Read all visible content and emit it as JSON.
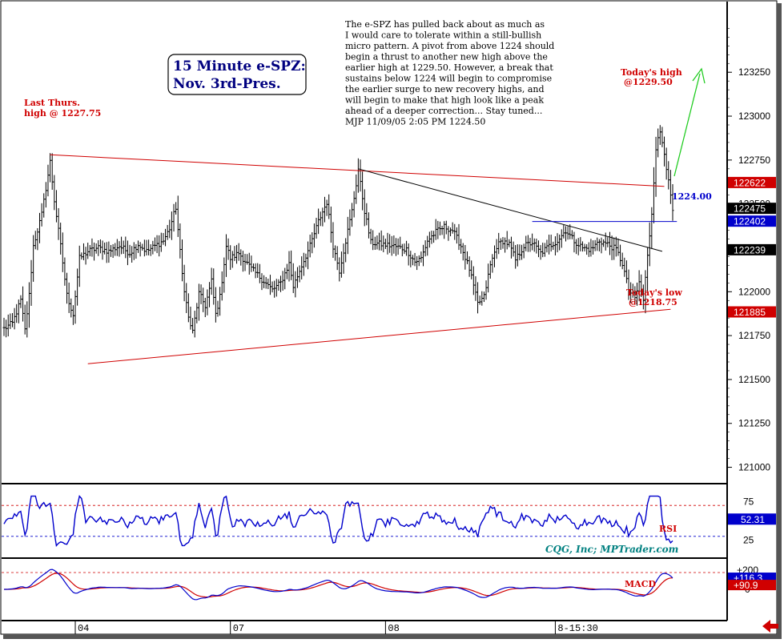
{
  "chart_data": {
    "type": "bar",
    "subtype": "ohlc-price-chart-with-indicators",
    "title": "15 Minute e-SPZ:",
    "subtitle": "Nov. 3rd-Pres.",
    "commentary": [
      "The e-SPZ has pulled back about as much as",
      "I would care to tolerate within a still-bullish",
      "micro pattern. A pivot from above 1224 should",
      "begin a thrust to another new high above the",
      "earlier high at 1229.50. However, a break that",
      "sustains below 1224 will begin to compromise",
      "the earlier surge to new recovery highs, and",
      "will begin to make that high look like a peak",
      "ahead of a deeper correction... Stay tuned...",
      "MJP 11/09/05 2:05 PM  1224.50"
    ],
    "annotations": {
      "last_thurs_high": [
        "Last Thurs.",
        "high @ 1227.75"
      ],
      "todays_high": [
        "Today's high",
        "@1229.50"
      ],
      "todays_low": [
        "Today's low",
        "@1218.75"
      ],
      "level_label": "1224.00"
    },
    "credit": "CQG, Inc; MPTrader.com",
    "ylim": [
      1209.25,
      1236.25
    ],
    "y_ticks": [
      1232.5,
      1230.0,
      1227.5,
      1225.0,
      1222.5,
      1220.0,
      1217.5,
      1215.0,
      1212.5,
      1210.0
    ],
    "y_tick_labels": [
      "123250",
      "123000",
      "122750",
      "122500",
      "122250",
      "122000",
      "121750",
      "121500",
      "121250",
      "121000"
    ],
    "price_tags": [
      {
        "label": "122622",
        "value": 1226.22,
        "color": "#d00000"
      },
      {
        "label": "122475",
        "value": 1224.75,
        "color": "#000000"
      },
      {
        "label": "122402",
        "value": 1224.02,
        "color": "#0000cc"
      },
      {
        "label": "122239",
        "value": 1222.39,
        "color": "#000000"
      },
      {
        "label": "121885",
        "value": 1218.85,
        "color": "#d00000"
      }
    ],
    "x_labels": [
      "04",
      "07",
      "08",
      "8-15:30"
    ],
    "x_label_bar_index": [
      34,
      108,
      182,
      263
    ],
    "bar_count": 320,
    "anchors": [
      [
        0,
        1217.9
      ],
      [
        4,
        1218.2
      ],
      [
        8,
        1219.5
      ],
      [
        10,
        1217.8
      ],
      [
        12,
        1219.8
      ],
      [
        14,
        1222.6
      ],
      [
        18,
        1224.4
      ],
      [
        22,
        1227.4
      ],
      [
        24,
        1225.2
      ],
      [
        27,
        1222.6
      ],
      [
        30,
        1219.8
      ],
      [
        33,
        1218.7
      ],
      [
        36,
        1221.9
      ],
      [
        40,
        1222.3
      ],
      [
        45,
        1222.5
      ],
      [
        50,
        1222.3
      ],
      [
        55,
        1222.6
      ],
      [
        60,
        1222.2
      ],
      [
        64,
        1222.7
      ],
      [
        68,
        1222.3
      ],
      [
        72,
        1222.6
      ],
      [
        76,
        1222.9
      ],
      [
        79,
        1223.6
      ],
      [
        82,
        1224.8
      ],
      [
        85,
        1221.0
      ],
      [
        88,
        1218.5
      ],
      [
        90,
        1217.7
      ],
      [
        93,
        1219.9
      ],
      [
        96,
        1219.2
      ],
      [
        99,
        1220.6
      ],
      [
        101,
        1218.7
      ],
      [
        103,
        1219.7
      ],
      [
        106,
        1222.6
      ],
      [
        108,
        1221.9
      ],
      [
        112,
        1222.2
      ],
      [
        118,
        1221.3
      ],
      [
        124,
        1220.6
      ],
      [
        128,
        1220.1
      ],
      [
        132,
        1220.5
      ],
      [
        136,
        1221.6
      ],
      [
        138,
        1220.3
      ],
      [
        142,
        1221.5
      ],
      [
        146,
        1222.6
      ],
      [
        150,
        1224.0
      ],
      [
        154,
        1225.1
      ],
      [
        157,
        1222.6
      ],
      [
        160,
        1221.2
      ],
      [
        163,
        1222.9
      ],
      [
        166,
        1224.6
      ],
      [
        169,
        1226.9
      ],
      [
        172,
        1224.6
      ],
      [
        175,
        1222.8
      ],
      [
        180,
        1222.7
      ],
      [
        186,
        1222.6
      ],
      [
        192,
        1222.4
      ],
      [
        196,
        1221.7
      ],
      [
        199,
        1221.9
      ],
      [
        202,
        1222.9
      ],
      [
        206,
        1223.4
      ],
      [
        210,
        1223.7
      ],
      [
        214,
        1223.5
      ],
      [
        218,
        1222.6
      ],
      [
        222,
        1221.3
      ],
      [
        226,
        1219.3
      ],
      [
        229,
        1219.7
      ],
      [
        232,
        1221.5
      ],
      [
        235,
        1222.6
      ],
      [
        238,
        1222.9
      ],
      [
        241,
        1222.7
      ],
      [
        244,
        1221.8
      ],
      [
        248,
        1222.6
      ],
      [
        252,
        1222.8
      ],
      [
        256,
        1222.2
      ],
      [
        260,
        1222.6
      ],
      [
        264,
        1222.9
      ],
      [
        268,
        1223.5
      ],
      [
        272,
        1222.9
      ],
      [
        276,
        1222.5
      ],
      [
        280,
        1222.4
      ],
      [
        284,
        1222.9
      ],
      [
        288,
        1222.7
      ],
      [
        292,
        1222.4
      ],
      [
        295,
        1221.6
      ],
      [
        298,
        1220.1
      ],
      [
        301,
        1219.6
      ],
      [
        303,
        1220.5
      ],
      [
        305,
        1219.5
      ],
      [
        307,
        1222.0
      ],
      [
        309,
        1224.5
      ],
      [
        311,
        1228.2
      ],
      [
        313,
        1229.1
      ],
      [
        315,
        1228.0
      ],
      [
        317,
        1226.2
      ],
      [
        319,
        1224.6
      ]
    ],
    "trendlines": [
      {
        "name": "upper",
        "color": "#d00000",
        "from": [
          22,
          1227.8
        ],
        "to": [
          315,
          1226.0
        ]
      },
      {
        "name": "lower",
        "color": "#d00000",
        "from": [
          40,
          1215.9
        ],
        "to": [
          318,
          1219.0
        ]
      },
      {
        "name": "decline",
        "color": "#000000",
        "from": [
          169,
          1227.0
        ],
        "to": [
          314,
          1222.3
        ]
      },
      {
        "name": "level",
        "color": "#0000cc",
        "from": [
          252,
          1224.0
        ],
        "to": [
          321,
          1224.0
        ]
      }
    ],
    "rsi": {
      "name": "RSI",
      "ylim": [
        5,
        95
      ],
      "ticks": [
        75,
        25
      ],
      "levels": [
        70,
        30
      ],
      "current_label": "52.31",
      "current_value": 52.31
    },
    "macd": {
      "name": "MACD",
      "ylim": [
        -300,
        300
      ],
      "tick_labels": [
        "+200",
        "0"
      ],
      "tick_values": [
        200,
        0
      ],
      "ref_level": 200,
      "current_labels": [
        "+116.3",
        "+90.9"
      ],
      "current_values": [
        116.3,
        90.9
      ]
    },
    "colors": {
      "bars": "#000000",
      "trend_red": "#d00000",
      "trend_black": "#000000",
      "level_blue": "#0000cc",
      "rsi_line": "#0000cc",
      "macd_line": "#0000cc",
      "signal_line": "#d00000",
      "target_arrow": "#22cc22"
    }
  }
}
